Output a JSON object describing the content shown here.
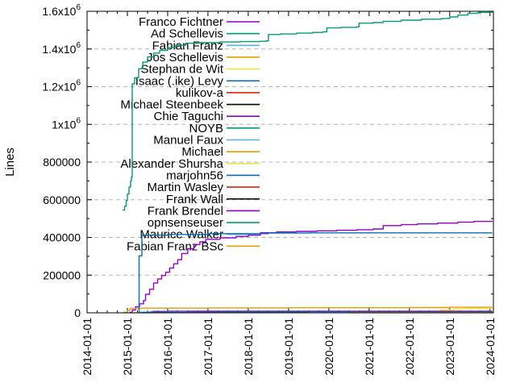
{
  "chart_data": {
    "type": "line",
    "title": "",
    "ylabel": "Lines",
    "xlabel": "",
    "xlim": [
      2014.0,
      2024.085
    ],
    "ylim": [
      0,
      1600000
    ],
    "grid": {
      "on": true,
      "axis": "y",
      "color": "#b5b5b5",
      "style": "dashed"
    },
    "legend_position": "top-left-inside",
    "palette": [
      "#9400d3",
      "#009e73",
      "#56b4e9",
      "#e69f00",
      "#f0e442",
      "#0072b2",
      "#e51e10",
      "#000000"
    ],
    "xticks": [
      {
        "label": "2014-01-01",
        "year": 2014
      },
      {
        "label": "2015-01-01",
        "year": 2015
      },
      {
        "label": "2016-01-01",
        "year": 2016
      },
      {
        "label": "2017-01-01",
        "year": 2017
      },
      {
        "label": "2018-01-01",
        "year": 2018
      },
      {
        "label": "2019-01-01",
        "year": 2019
      },
      {
        "label": "2020-01-01",
        "year": 2020
      },
      {
        "label": "2021-01-01",
        "year": 2021
      },
      {
        "label": "2022-01-01",
        "year": 2022
      },
      {
        "label": "2023-01-01",
        "year": 2023
      },
      {
        "label": "2024-01-01",
        "year": 2024
      }
    ],
    "x_minor_interval": 0.25,
    "yticks": [
      {
        "label": "0",
        "value": 0
      },
      {
        "label": "200000",
        "value": 200000
      },
      {
        "label": "400000",
        "value": 400000
      },
      {
        "label": "600000",
        "value": 600000
      },
      {
        "label": "800000",
        "value": 800000
      },
      {
        "label": "1x10^6",
        "value": 1000000
      },
      {
        "label": "1.2x10^6",
        "value": 1200000
      },
      {
        "label": "1.4x10^6",
        "value": 1400000
      },
      {
        "label": "1.6x10^6",
        "value": 1600000
      }
    ],
    "y_minor_interval": 100000,
    "series": [
      {
        "name": "Franco Fichtner",
        "color": 0,
        "points": [
          [
            2015.05,
            2000
          ],
          [
            2015.12,
            15000
          ],
          [
            2015.2,
            32000
          ],
          [
            2015.3,
            48000
          ],
          [
            2015.4,
            65000
          ],
          [
            2015.45,
            98000
          ],
          [
            2015.55,
            125000
          ],
          [
            2015.65,
            158000
          ],
          [
            2015.75,
            180000
          ],
          [
            2015.85,
            198000
          ],
          [
            2015.95,
            215000
          ],
          [
            2016.05,
            238000
          ],
          [
            2016.15,
            260000
          ],
          [
            2016.25,
            282000
          ],
          [
            2016.35,
            315000
          ],
          [
            2016.5,
            340000
          ],
          [
            2016.65,
            362000
          ],
          [
            2016.8,
            377000
          ],
          [
            2016.95,
            390000
          ],
          [
            2017.3,
            398000
          ],
          [
            2017.7,
            405000
          ],
          [
            2018.0,
            412000
          ],
          [
            2018.3,
            425000
          ],
          [
            2018.7,
            429000
          ],
          [
            2019.2,
            432000
          ],
          [
            2019.7,
            435000
          ],
          [
            2020.2,
            438000
          ],
          [
            2020.7,
            441000
          ],
          [
            2021.1,
            445000
          ],
          [
            2021.35,
            463000
          ],
          [
            2021.8,
            468000
          ],
          [
            2022.2,
            472000
          ],
          [
            2022.7,
            476000
          ],
          [
            2023.2,
            481000
          ],
          [
            2023.6,
            485000
          ],
          [
            2024.05,
            489000
          ]
        ]
      },
      {
        "name": "Ad Schellevis",
        "color": 1,
        "points": [
          [
            2014.88,
            545000
          ],
          [
            2014.93,
            565000
          ],
          [
            2014.97,
            595000
          ],
          [
            2015.0,
            630000
          ],
          [
            2015.04,
            668000
          ],
          [
            2015.08,
            700000
          ],
          [
            2015.1,
            720000
          ],
          [
            2015.12,
            1215000
          ],
          [
            2015.18,
            1248000
          ],
          [
            2015.28,
            1295000
          ],
          [
            2015.38,
            1330000
          ],
          [
            2015.5,
            1358000
          ],
          [
            2015.65,
            1378000
          ],
          [
            2015.8,
            1392000
          ],
          [
            2016.0,
            1408000
          ],
          [
            2016.2,
            1420000
          ],
          [
            2016.45,
            1430000
          ],
          [
            2016.8,
            1434000
          ],
          [
            2017.3,
            1437000
          ],
          [
            2017.8,
            1439000
          ],
          [
            2018.3,
            1441000
          ],
          [
            2018.45,
            1443000
          ],
          [
            2018.5,
            1477000
          ],
          [
            2018.8,
            1480000
          ],
          [
            2019.2,
            1484000
          ],
          [
            2019.6,
            1488000
          ],
          [
            2019.85,
            1491000
          ],
          [
            2019.95,
            1512000
          ],
          [
            2020.3,
            1515000
          ],
          [
            2020.7,
            1518000
          ],
          [
            2020.75,
            1537000
          ],
          [
            2021.1,
            1540000
          ],
          [
            2021.35,
            1547000
          ],
          [
            2021.8,
            1553000
          ],
          [
            2022.3,
            1558000
          ],
          [
            2022.8,
            1562000
          ],
          [
            2023.0,
            1570000
          ],
          [
            2023.2,
            1580000
          ],
          [
            2023.45,
            1589000
          ],
          [
            2023.7,
            1594000
          ],
          [
            2024.05,
            1598000
          ]
        ]
      },
      {
        "name": "Fabian Franz",
        "color": 2,
        "points": [
          [
            2015.3,
            4000
          ],
          [
            2015.6,
            8000
          ],
          [
            2024.05,
            10000
          ]
        ]
      },
      {
        "name": "Jos Schellevis",
        "color": 3,
        "points": [
          [
            2014.9,
            3000
          ],
          [
            2015.0,
            12000
          ],
          [
            2015.06,
            23000
          ],
          [
            2015.35,
            25000
          ],
          [
            2017.0,
            26000
          ],
          [
            2019.0,
            27000
          ],
          [
            2022.0,
            28000
          ],
          [
            2023.0,
            29500
          ],
          [
            2024.05,
            30500
          ]
        ]
      },
      {
        "name": "Stephan de Wit",
        "color": 4,
        "points": [
          [
            2015.1,
            600
          ],
          [
            2016.0,
            1000
          ],
          [
            2022.65,
            1500
          ],
          [
            2022.75,
            15000
          ],
          [
            2023.1,
            21000
          ],
          [
            2023.5,
            22500
          ],
          [
            2024.05,
            23000
          ]
        ]
      },
      {
        "name": "Isaac (.ike) Levy",
        "color": 5,
        "points": [
          [
            2015.28,
            500
          ],
          [
            2015.29,
            303000
          ],
          [
            2015.36,
            412000
          ],
          [
            2016.0,
            416000
          ],
          [
            2017.0,
            420000
          ],
          [
            2018.5,
            423000
          ],
          [
            2019.5,
            424500
          ],
          [
            2024.05,
            425000
          ]
        ]
      },
      {
        "name": "kulikov-a",
        "color": 6,
        "points": [
          [
            2016.6,
            1500
          ],
          [
            2017.5,
            2500
          ],
          [
            2019.0,
            3200
          ],
          [
            2021.0,
            3800
          ],
          [
            2024.05,
            4200
          ]
        ]
      },
      {
        "name": "Michael Steenbeek",
        "color": 7,
        "points": [
          [
            2017.0,
            1000
          ],
          [
            2019.0,
            1800
          ],
          [
            2024.05,
            2200
          ]
        ]
      },
      {
        "name": "Chie Taguchi",
        "color": 0,
        "points": [
          [
            2015.55,
            4000
          ],
          [
            2015.65,
            7000
          ],
          [
            2016.0,
            8000
          ],
          [
            2024.05,
            8500
          ]
        ]
      },
      {
        "name": "NOYB",
        "color": 1,
        "points": [
          [
            2016.3,
            1200
          ],
          [
            2017.0,
            2200
          ],
          [
            2024.05,
            2600
          ]
        ]
      },
      {
        "name": "Manuel Faux",
        "color": 2,
        "points": [
          [
            2015.35,
            1500
          ],
          [
            2016.0,
            2000
          ],
          [
            2024.05,
            2300
          ]
        ]
      },
      {
        "name": "Michael",
        "color": 3,
        "points": [
          [
            2016.0,
            1200
          ],
          [
            2017.0,
            1800
          ],
          [
            2024.05,
            2000
          ]
        ]
      },
      {
        "name": "Alexander Shursha",
        "color": 4,
        "points": [
          [
            2016.5,
            800
          ],
          [
            2024.05,
            1200
          ]
        ]
      },
      {
        "name": "marjohn56",
        "color": 5,
        "points": [
          [
            2016.9,
            2000
          ],
          [
            2017.3,
            4200
          ],
          [
            2018.2,
            5200
          ],
          [
            2024.05,
            6000
          ]
        ]
      },
      {
        "name": "Martin Wasley",
        "color": 6,
        "points": [
          [
            2017.0,
            1500
          ],
          [
            2018.0,
            2200
          ],
          [
            2024.05,
            2500
          ]
        ]
      },
      {
        "name": "Frank Wall",
        "color": 7,
        "points": [
          [
            2015.4,
            900
          ],
          [
            2016.5,
            1600
          ],
          [
            2024.05,
            1900
          ]
        ]
      },
      {
        "name": "Frank Brendel",
        "color": 0,
        "points": [
          [
            2016.4,
            1000
          ],
          [
            2016.6,
            2600
          ],
          [
            2024.05,
            3000
          ]
        ]
      },
      {
        "name": "opnsenseuser",
        "color": 1,
        "points": [
          [
            2015.35,
            1200
          ],
          [
            2024.05,
            1600
          ]
        ]
      },
      {
        "name": "Maurice Walker",
        "color": 2,
        "points": [
          [
            2019.5,
            800
          ],
          [
            2024.05,
            1400
          ]
        ]
      },
      {
        "name": "Fabian Franz BSc",
        "color": 3,
        "points": [
          [
            2020.5,
            600
          ],
          [
            2024.05,
            1000
          ]
        ]
      }
    ]
  }
}
